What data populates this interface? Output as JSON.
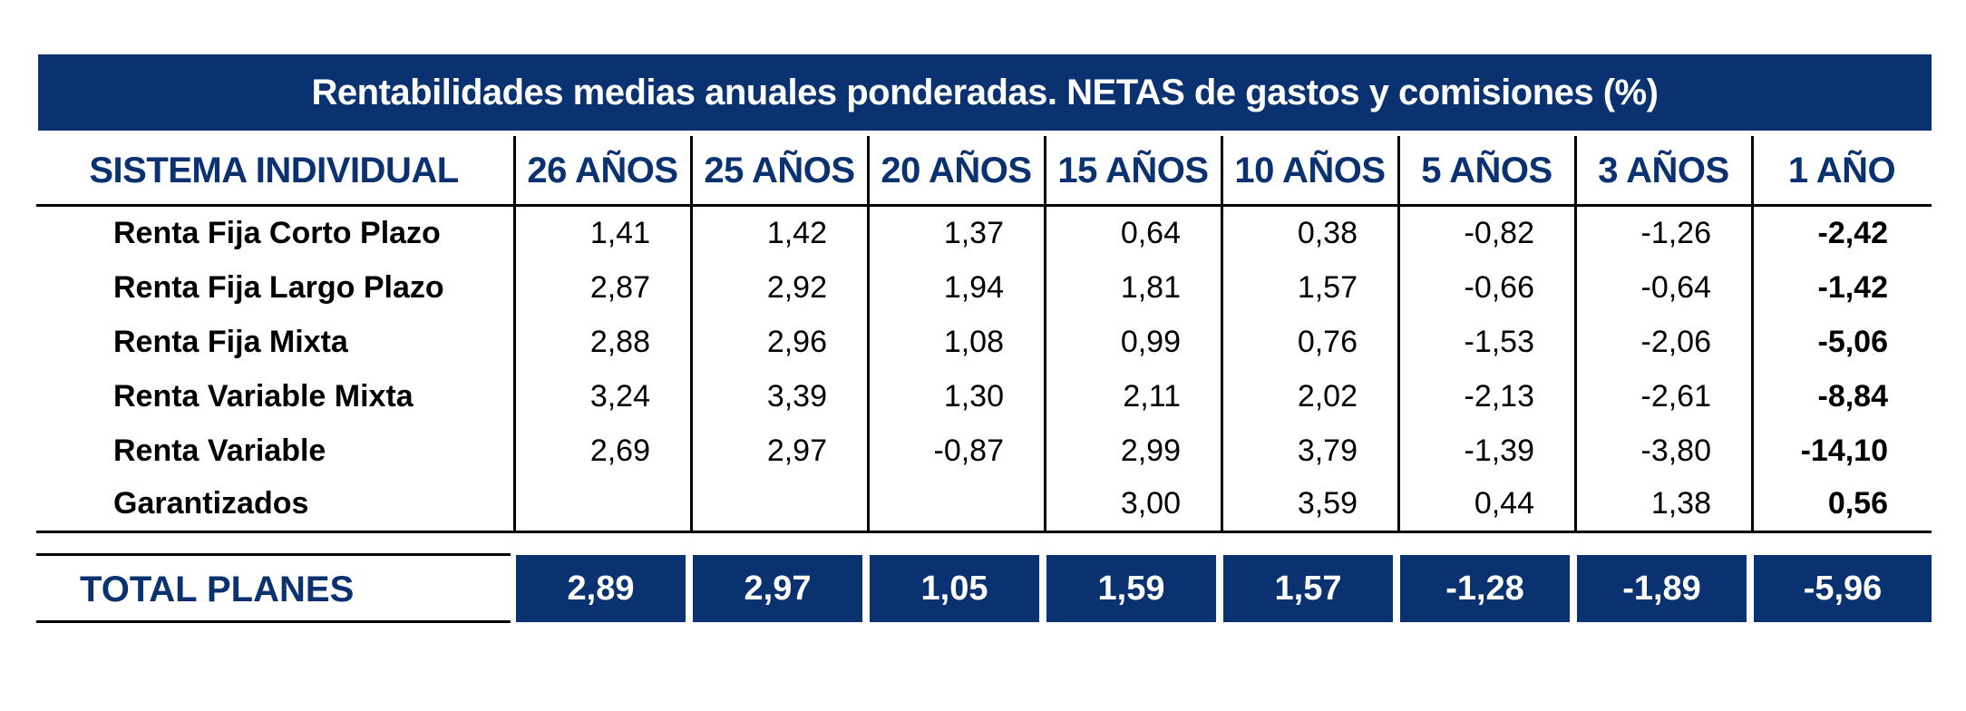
{
  "title": "Rentabilidades medias anuales ponderadas. NETAS de gastos y comisiones (%)",
  "columns": [
    "SISTEMA INDIVIDUAL",
    "26 AÑOS",
    "25 AÑOS",
    "20 AÑOS",
    "15 AÑOS",
    "10 AÑOS",
    "5 AÑOS",
    "3 AÑOS",
    "1 AÑO"
  ],
  "rows": [
    {
      "label": "Renta Fija Corto Plazo",
      "values": [
        "1,41",
        "1,42",
        "1,37",
        "0,64",
        "0,38",
        "-0,82",
        "-1,26",
        "-2,42"
      ]
    },
    {
      "label": "Renta Fija Largo Plazo",
      "values": [
        "2,87",
        "2,92",
        "1,94",
        "1,81",
        "1,57",
        "-0,66",
        "-0,64",
        "-1,42"
      ]
    },
    {
      "label": "Renta Fija Mixta",
      "values": [
        "2,88",
        "2,96",
        "1,08",
        "0,99",
        "0,76",
        "-1,53",
        "-2,06",
        "-5,06"
      ]
    },
    {
      "label": "Renta Variable Mixta",
      "values": [
        "3,24",
        "3,39",
        "1,30",
        "2,11",
        "2,02",
        "-2,13",
        "-2,61",
        "-8,84"
      ]
    },
    {
      "label": "Renta Variable",
      "values": [
        "2,69",
        "2,97",
        "-0,87",
        "2,99",
        "3,79",
        "-1,39",
        "-3,80",
        "-14,10"
      ]
    },
    {
      "label": "Garantizados",
      "values": [
        "",
        "",
        "",
        "3,00",
        "3,59",
        "0,44",
        "1,38",
        "0,56"
      ]
    }
  ],
  "total": {
    "label": "TOTAL PLANES",
    "values": [
      "2,89",
      "2,97",
      "1,05",
      "1,59",
      "1,57",
      "-1,28",
      "-1,89",
      "-5,96"
    ]
  },
  "colors": {
    "navy": "#0a3170"
  }
}
